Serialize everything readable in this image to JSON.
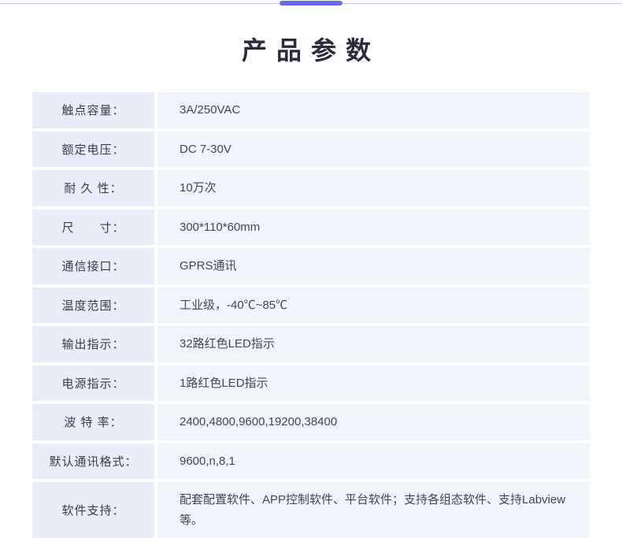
{
  "title": "产品参数",
  "colors": {
    "rule": "#c8c8e8",
    "accent": "#6b6be8",
    "label_bg": "#e9edf7",
    "value_bg": "#f1f4fb",
    "text": "#333340"
  },
  "spec_rows": [
    {
      "label": "触点容量：",
      "value": "3A/250VAC",
      "spacing": ""
    },
    {
      "label": "额定电压：",
      "value": "DC 7-30V",
      "spacing": ""
    },
    {
      "label": "耐 久 性：",
      "value": "10万次",
      "spacing": ""
    },
    {
      "label": "尺　　寸：",
      "value": "300*110*60mm",
      "spacing": ""
    },
    {
      "label": "通信接口：",
      "value": "GPRS通讯",
      "spacing": ""
    },
    {
      "label": "温度范围：",
      "value": "工业级，-40℃~85℃",
      "spacing": ""
    },
    {
      "label": "输出指示：",
      "value": "32路红色LED指示",
      "spacing": ""
    },
    {
      "label": "电源指示：",
      "value": "1路红色LED指示",
      "spacing": ""
    },
    {
      "label": "波 特 率：",
      "value": "2400,4800,9600,19200,38400",
      "spacing": ""
    },
    {
      "label": "默认通讯格式：",
      "value": "9600,n,8,1",
      "spacing": ""
    },
    {
      "label": "软件支持：",
      "value": "配套配置软件、APP控制软件、平台软件；支持各组态软件、支持Labview等。",
      "spacing": ""
    }
  ]
}
